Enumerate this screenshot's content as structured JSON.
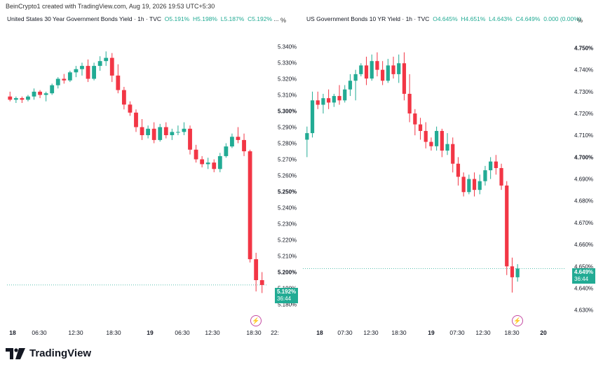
{
  "credit": "BeinCrypto1 created with TradingView.com, Aug 19, 2026 19:53 UTC+5:30",
  "brand": "TradingView",
  "colors": {
    "up": "#22ab94",
    "down": "#f23645",
    "last_line": "#22ab94"
  },
  "panels": [
    {
      "title": "United States 30 Year Government Bonds Yield · 1h · TVC",
      "ohlc": {
        "o_label": "O",
        "o": "5.191%",
        "h_label": "H",
        "h": "5.198%",
        "l_label": "L",
        "l": "5.187%",
        "c_label": "C",
        "c": "5.192%",
        "tail": "..."
      },
      "unit": "%",
      "last_price": "5.192%",
      "countdown": "36:44",
      "chart_data": {
        "type": "candlestick",
        "y_ticks": [
          "5.340%",
          "5.330%",
          "5.320%",
          "5.310%",
          "5.300%",
          "5.290%",
          "5.280%",
          "5.270%",
          "5.260%",
          "5.250%",
          "5.240%",
          "5.230%",
          "5.220%",
          "5.210%",
          "5.200%",
          "5.190%",
          "5.180%"
        ],
        "y_ticks_bold": [
          "5.300%",
          "5.250%",
          "5.200%"
        ],
        "x_ticks": [
          "18",
          "06:30",
          "12:30",
          "18:30",
          "19",
          "06:30",
          "12:30",
          "18:30",
          "22:"
        ],
        "x_ticks_bold": [
          "18",
          "19"
        ],
        "ylim": [
          5.175,
          5.345
        ],
        "last_value": 5.192,
        "candles": [
          [
            5.309,
            5.312,
            5.306,
            5.307
          ],
          [
            5.307,
            5.309,
            5.305,
            5.308
          ],
          [
            5.308,
            5.309,
            5.305,
            5.307
          ],
          [
            5.307,
            5.31,
            5.306,
            5.309
          ],
          [
            5.309,
            5.314,
            5.307,
            5.312
          ],
          [
            5.312,
            5.313,
            5.308,
            5.31
          ],
          [
            5.31,
            5.312,
            5.306,
            5.311
          ],
          [
            5.311,
            5.317,
            5.31,
            5.316
          ],
          [
            5.316,
            5.321,
            5.314,
            5.32
          ],
          [
            5.32,
            5.323,
            5.317,
            5.319
          ],
          [
            5.319,
            5.325,
            5.318,
            5.324
          ],
          [
            5.324,
            5.328,
            5.321,
            5.326
          ],
          [
            5.326,
            5.33,
            5.322,
            5.328
          ],
          [
            5.328,
            5.332,
            5.318,
            5.32
          ],
          [
            5.32,
            5.33,
            5.319,
            5.328
          ],
          [
            5.328,
            5.334,
            5.325,
            5.331
          ],
          [
            5.331,
            5.337,
            5.328,
            5.333
          ],
          [
            5.333,
            5.336,
            5.318,
            5.322
          ],
          [
            5.322,
            5.329,
            5.311,
            5.313
          ],
          [
            5.313,
            5.315,
            5.301,
            5.304
          ],
          [
            5.304,
            5.306,
            5.297,
            5.299
          ],
          [
            5.299,
            5.301,
            5.287,
            5.29
          ],
          [
            5.29,
            5.295,
            5.282,
            5.285
          ],
          [
            5.285,
            5.291,
            5.283,
            5.289
          ],
          [
            5.289,
            5.293,
            5.28,
            5.282
          ],
          [
            5.282,
            5.292,
            5.281,
            5.29
          ],
          [
            5.29,
            5.293,
            5.283,
            5.285
          ],
          [
            5.285,
            5.289,
            5.282,
            5.287
          ],
          [
            5.287,
            5.291,
            5.285,
            5.287
          ],
          [
            5.287,
            5.293,
            5.285,
            5.289
          ],
          [
            5.289,
            5.291,
            5.273,
            5.276
          ],
          [
            5.276,
            5.279,
            5.268,
            5.27
          ],
          [
            5.27,
            5.272,
            5.265,
            5.267
          ],
          [
            5.267,
            5.271,
            5.264,
            5.268
          ],
          [
            5.268,
            5.27,
            5.262,
            5.264
          ],
          [
            5.264,
            5.274,
            5.262,
            5.272
          ],
          [
            5.272,
            5.28,
            5.271,
            5.278
          ],
          [
            5.278,
            5.286,
            5.277,
            5.284
          ],
          [
            5.284,
            5.29,
            5.28,
            5.282
          ],
          [
            5.282,
            5.286,
            5.272,
            5.275
          ],
          [
            5.275,
            5.276,
            5.206,
            5.208
          ],
          [
            5.208,
            5.212,
            5.188,
            5.195
          ],
          [
            5.195,
            5.2,
            5.187,
            5.192
          ]
        ]
      }
    },
    {
      "title": "US Government Bonds 10 YR Yield · 1h · TVC",
      "ohlc": {
        "o_label": "O",
        "o": "4.645%",
        "h_label": "H",
        "h": "4.651%",
        "l_label": "L",
        "l": "4.643%",
        "c_label": "C",
        "c": "4.649%",
        "tail": "0.000 (0.00%)"
      },
      "unit": "%",
      "last_price": "4.649%",
      "countdown": "36:44",
      "chart_data": {
        "type": "candlestick",
        "y_ticks": [
          "4.750%",
          "4.740%",
          "4.730%",
          "4.720%",
          "4.710%",
          "4.700%",
          "4.690%",
          "4.680%",
          "4.670%",
          "4.660%",
          "4.650%",
          "4.640%",
          "4.630%"
        ],
        "y_ticks_bold": [
          "4.750%",
          "4.700%"
        ],
        "x_ticks": [
          "18",
          "07:30",
          "12:30",
          "18:30",
          "19",
          "07:30",
          "12:30",
          "18:30",
          "20"
        ],
        "x_ticks_bold": [
          "18",
          "19",
          "20"
        ],
        "ylim": [
          4.627,
          4.754
        ],
        "last_value": 4.649,
        "candles": [
          [
            4.708,
            4.714,
            4.7,
            4.711
          ],
          [
            4.711,
            4.73,
            4.709,
            4.726
          ],
          [
            4.726,
            4.73,
            4.722,
            4.724
          ],
          [
            4.724,
            4.729,
            4.72,
            4.727
          ],
          [
            4.727,
            4.731,
            4.722,
            4.725
          ],
          [
            4.725,
            4.729,
            4.723,
            4.728
          ],
          [
            4.728,
            4.733,
            4.724,
            4.726
          ],
          [
            4.726,
            4.733,
            4.725,
            4.731
          ],
          [
            4.731,
            4.738,
            4.728,
            4.735
          ],
          [
            4.735,
            4.74,
            4.726,
            4.738
          ],
          [
            4.738,
            4.743,
            4.737,
            4.742
          ],
          [
            4.742,
            4.746,
            4.733,
            4.736
          ],
          [
            4.736,
            4.747,
            4.735,
            4.744
          ],
          [
            4.744,
            4.748,
            4.737,
            4.74
          ],
          [
            4.74,
            4.744,
            4.733,
            4.735
          ],
          [
            4.735,
            4.745,
            4.734,
            4.742
          ],
          [
            4.742,
            4.746,
            4.736,
            4.738
          ],
          [
            4.738,
            4.747,
            4.734,
            4.743
          ],
          [
            4.743,
            4.748,
            4.726,
            4.729
          ],
          [
            4.729,
            4.738,
            4.716,
            4.72
          ],
          [
            4.72,
            4.722,
            4.71,
            4.715
          ],
          [
            4.715,
            4.718,
            4.708,
            4.712
          ],
          [
            4.712,
            4.716,
            4.704,
            4.707
          ],
          [
            4.707,
            4.709,
            4.703,
            4.705
          ],
          [
            4.705,
            4.714,
            4.703,
            4.712
          ],
          [
            4.712,
            4.713,
            4.7,
            4.703
          ],
          [
            4.703,
            4.711,
            4.701,
            4.706
          ],
          [
            4.706,
            4.709,
            4.693,
            4.697
          ],
          [
            4.697,
            4.7,
            4.687,
            4.691
          ],
          [
            4.691,
            4.693,
            4.682,
            4.684
          ],
          [
            4.684,
            4.692,
            4.683,
            4.69
          ],
          [
            4.69,
            4.693,
            4.682,
            4.685
          ],
          [
            4.685,
            4.692,
            4.683,
            4.689
          ],
          [
            4.689,
            4.696,
            4.687,
            4.694
          ],
          [
            4.694,
            4.7,
            4.69,
            4.698
          ],
          [
            4.698,
            4.701,
            4.692,
            4.695
          ],
          [
            4.695,
            4.697,
            4.685,
            4.687
          ],
          [
            4.687,
            4.689,
            4.646,
            4.65
          ],
          [
            4.65,
            4.654,
            4.638,
            4.645
          ],
          [
            4.645,
            4.651,
            4.643,
            4.649
          ]
        ]
      }
    }
  ]
}
